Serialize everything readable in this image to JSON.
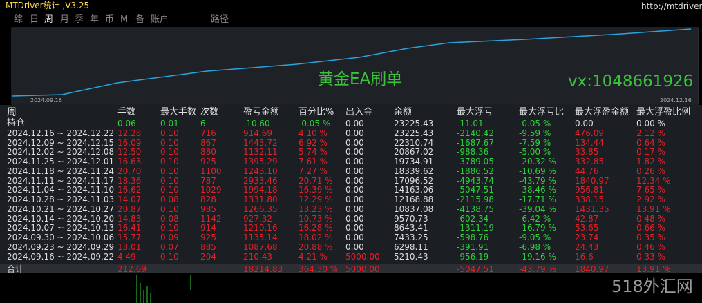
{
  "header": {
    "title": "MTDriver统计 ,V3.25",
    "url": "http://mtdriver.com..."
  },
  "tabs": [
    "综",
    "日",
    "周",
    "月",
    "季",
    "年",
    "币",
    "M",
    "备",
    "账户",
    "路径"
  ],
  "chart": {
    "dates": [
      "2024.09.16",
      "2024.12.16"
    ],
    "captions": [
      "黄金EA刷单",
      "vx:1048661926"
    ]
  },
  "table": {
    "headers": [
      "周",
      "手数",
      "最大手数",
      "次数",
      "盈亏金额",
      "百分比%",
      "出入金",
      "余额",
      "最大浮亏",
      "最大浮亏比",
      "最大浮盈金额",
      "最大浮盈比例"
    ],
    "rows": [
      [
        "持仓",
        "0.06",
        "0.01",
        "6",
        "-10.60",
        "-0.05 %",
        "0.00",
        "23225.43",
        "-11.01",
        "-0.05 %",
        "0.00",
        "0.00 %"
      ],
      [
        "2024.12.16 ~ 2024.12.22",
        "12.28",
        "0.10",
        "716",
        "914.69",
        "4.10 %",
        "0.00",
        "23225.43",
        "-2140.42",
        "-9.59 %",
        "476.09",
        "2.12 %"
      ],
      [
        "2024.12.09 ~ 2024.12.15",
        "16.09",
        "0.10",
        "867",
        "1443.72",
        "6.92 %",
        "0.00",
        "22310.74",
        "-1687.67",
        "-7.59 %",
        "134.44",
        "0.64 %"
      ],
      [
        "2024.12.02 ~ 2024.12.08",
        "12.50",
        "0.10",
        "880",
        "1132.11",
        "5.74 %",
        "0.00",
        "20867.02",
        "-988.36",
        "-5.00 %",
        "33.85",
        "0.17 %"
      ],
      [
        "2024.11.25 ~ 2024.12.01",
        "16.63",
        "0.10",
        "925",
        "1395.29",
        "7.61 %",
        "0.00",
        "19734.91",
        "-3789.05",
        "-20.32 %",
        "332.85",
        "1.82 %"
      ],
      [
        "2024.11.18 ~ 2024.11.24",
        "20.70",
        "0.10",
        "1100",
        "1243.10",
        "7.27 %",
        "0.00",
        "18339.62",
        "-1886.52",
        "-10.69 %",
        "44.76",
        "0.26 %"
      ],
      [
        "2024.11.11 ~ 2024.11.17",
        "18.36",
        "0.10",
        "787",
        "2933.46",
        "20.71 %",
        "0.00",
        "17096.52",
        "-4943.74",
        "-43.79 %",
        "1840.97",
        "12.34 %"
      ],
      [
        "2024.11.04 ~ 2024.11.10",
        "16.62",
        "0.10",
        "1029",
        "1994.18",
        "16.39 %",
        "0.00",
        "14163.06",
        "-5047.51",
        "-38.46 %",
        "956.81",
        "7.65 %"
      ],
      [
        "2024.10.28 ~ 2024.11.03",
        "14.07",
        "0.08",
        "828",
        "1331.80",
        "12.29 %",
        "0.00",
        "12168.88",
        "-2115.98",
        "-17.71 %",
        "338.15",
        "2.92 %"
      ],
      [
        "2024.10.21 ~ 2024.10.27",
        "20.87",
        "0.10",
        "985",
        "1266.35",
        "13.23 %",
        "0.00",
        "10837.08",
        "-4138.75",
        "-39.04 %",
        "1431.35",
        "13.91 %"
      ],
      [
        "2024.10.14 ~ 2024.10.20",
        "14.83",
        "0.08",
        "1142",
        "927.32",
        "10.73 %",
        "0.00",
        "9570.73",
        "-602.34",
        "-6.42 %",
        "42.87",
        "0.48 %"
      ],
      [
        "2024.10.07 ~ 2024.10.13",
        "16.41",
        "0.10",
        "914",
        "1210.16",
        "16.28 %",
        "0.00",
        "8643.41",
        "-1311.19",
        "-16.79 %",
        "53.65",
        "0.66 %"
      ],
      [
        "2024.09.30 ~ 2024.10.06",
        "15.77",
        "0.09",
        "925",
        "1135.14",
        "18.02 %",
        "0.00",
        "7433.25",
        "-598.76",
        "-9.05 %",
        "23.74",
        "0.35 %"
      ],
      [
        "2024.09.23 ~ 2024.09.29",
        "13.01",
        "0.07",
        "885",
        "1087.68",
        "20.88 %",
        "0.00",
        "6298.11",
        "-391.91",
        "-6.98 %",
        "24.43",
        "0.46 %"
      ],
      [
        "2024.09.16 ~ 2024.09.22",
        "4.49",
        "0.10",
        "204",
        "210.43",
        "4.21 %",
        "5000.00",
        "5210.43",
        "-956.19",
        "-19.16 %",
        "16.6",
        "0.33 %"
      ]
    ],
    "total": [
      "合计",
      "212.69",
      null,
      null,
      "18214.83",
      "364.30 %",
      "5000.00",
      null,
      "-5047.51",
      "-43.79 %",
      "1840.97",
      "13.91 %"
    ]
  },
  "watermark": "518外汇网"
}
